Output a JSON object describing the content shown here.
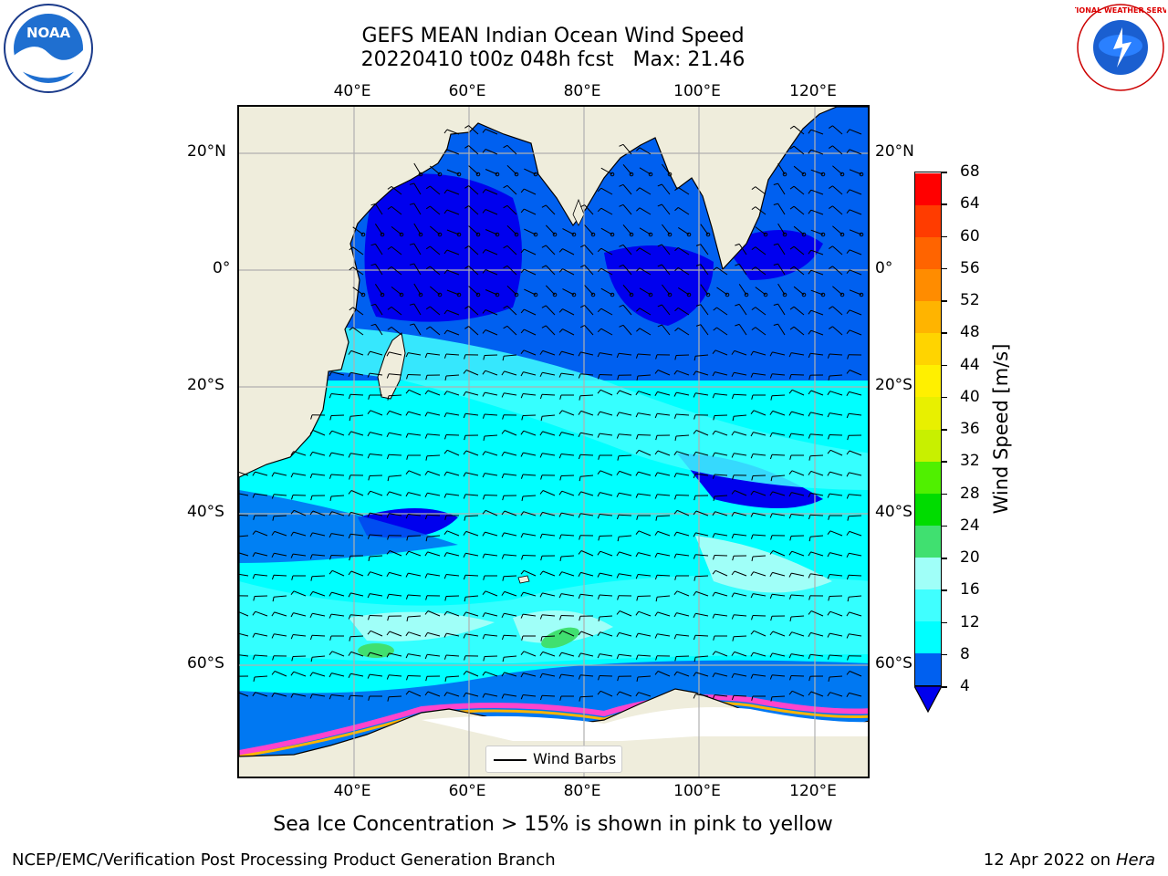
{
  "title_line1": "GEFS MEAN Indian Ocean Wind Speed",
  "title_line2": "20220410 t00z 048h fcst   Max: 21.46",
  "lon_ticks": [
    "40°E",
    "60°E",
    "80°E",
    "100°E",
    "120°E"
  ],
  "lat_ticks": [
    "20°N",
    "0°",
    "20°S",
    "40°S",
    "60°S"
  ],
  "legend_label": "Wind Barbs",
  "colorbar": {
    "label": "Wind Speed [m/s]",
    "ticks": [
      "4",
      "8",
      "12",
      "16",
      "20",
      "24",
      "28",
      "32",
      "36",
      "40",
      "44",
      "48",
      "52",
      "56",
      "60",
      "64",
      "68"
    ],
    "colors": [
      "#0060f0",
      "#00ffff",
      "#40ffff",
      "#a0fff8",
      "#40e070",
      "#00dc00",
      "#50f000",
      "#c8f000",
      "#e8f000",
      "#fff000",
      "#ffd400",
      "#ffb400",
      "#ff8c00",
      "#ff6400",
      "#ff3c00",
      "#ff0000"
    ],
    "under_color": "#0000ee"
  },
  "subtitle": "Sea Ice Concentration > 15% is shown in pink to yellow",
  "footer_left": "NCEP/EMC/Verification Post Processing Product Generation Branch",
  "footer_right_date": "12 Apr 2022 on ",
  "footer_right_machine": "Hera",
  "logos": {
    "noaa_text": "NOAA",
    "nws_text": "NATIONAL WEATHER SERVICE"
  },
  "map_colors": {
    "land": "#efeddc",
    "ice": "#ffffff",
    "ice_edge": "#ff44cc"
  }
}
